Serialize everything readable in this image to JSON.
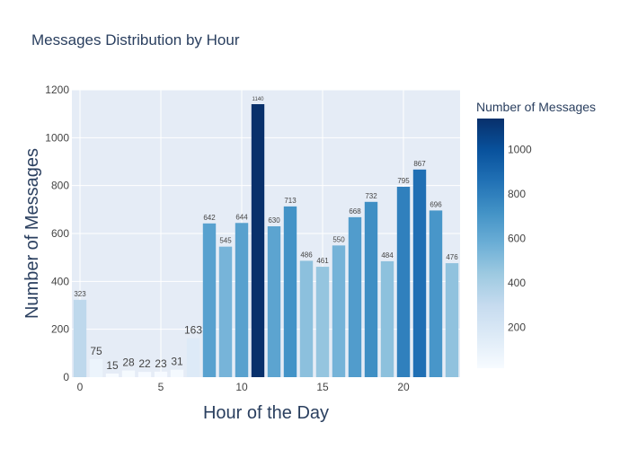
{
  "chart_data": {
    "type": "bar",
    "title": "Messages Distribution by Hour",
    "xlabel": "Hour of the Day",
    "ylabel": "Number of Messages",
    "x": [
      0,
      1,
      2,
      3,
      4,
      5,
      6,
      7,
      8,
      9,
      10,
      11,
      12,
      13,
      14,
      15,
      16,
      17,
      18,
      19,
      20,
      21,
      22,
      23
    ],
    "values": [
      323,
      75,
      15,
      28,
      22,
      23,
      31,
      163,
      642,
      545,
      644,
      1140,
      630,
      713,
      486,
      461,
      550,
      668,
      732,
      484,
      795,
      867,
      696,
      476
    ],
    "ylim": [
      0,
      1200
    ],
    "xlim": [
      -0.5,
      23.5
    ],
    "yticks": [
      0,
      200,
      400,
      600,
      800,
      1000,
      1200
    ],
    "xticks": [
      0,
      5,
      10,
      15,
      20
    ],
    "grid": true,
    "colorbar": {
      "title": "Number of Messages",
      "range": [
        15,
        1140
      ],
      "ticks": [
        200,
        400,
        600,
        800,
        1000
      ],
      "colorscale": [
        "#f7fbff",
        "#deebf7",
        "#c6dbef",
        "#9ecae1",
        "#6baed6",
        "#4292c6",
        "#2171b5",
        "#08519c",
        "#08306b"
      ]
    }
  }
}
